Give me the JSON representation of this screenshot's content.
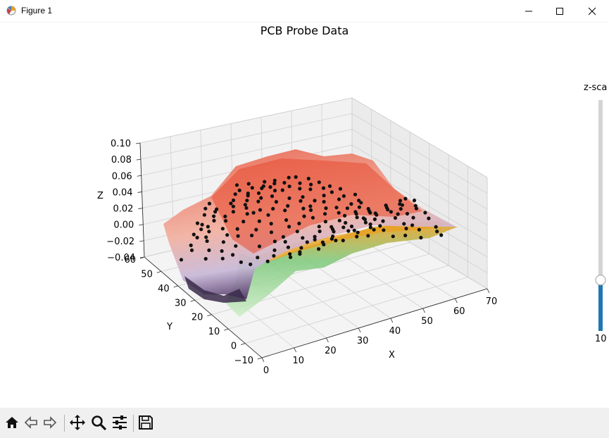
{
  "window": {
    "title": "Figure 1"
  },
  "figure": {
    "title": "PCB Probe Data"
  },
  "chart_data": {
    "type": "surface3d-scatter",
    "title": "PCB Probe Data",
    "xlabel": "X",
    "ylabel": "Y",
    "zlabel": "Z",
    "xlim": [
      0,
      70
    ],
    "ylim": [
      -10,
      60
    ],
    "zlim": [
      -0.04,
      0.1
    ],
    "x_ticks": [
      "0",
      "10",
      "20",
      "30",
      "40",
      "50",
      "60",
      "70"
    ],
    "y_ticks": [
      "−10",
      "0",
      "10",
      "20",
      "30",
      "40",
      "50",
      "60"
    ],
    "z_ticks": [
      "−0.04",
      "−0.02",
      "0.00",
      "0.02",
      "0.04",
      "0.06",
      "0.08",
      "0.10"
    ],
    "colormap_colors": [
      "#2d1e3e",
      "#6a3d8c",
      "#d8d0e8",
      "#f4b8a8",
      "#e85a3c",
      "#e8a020",
      "#7cc87a",
      "#cfeec8"
    ],
    "probe_point_color": "#111111",
    "grid": true
  },
  "slider": {
    "label": "z-sca",
    "value": "10",
    "fraction": 0.22,
    "color": "#1f77b4"
  },
  "toolbar": {
    "buttons": [
      "home-icon",
      "back-icon",
      "forward-icon",
      "pan-icon",
      "zoom-icon",
      "configure-icon",
      "save-icon"
    ]
  }
}
